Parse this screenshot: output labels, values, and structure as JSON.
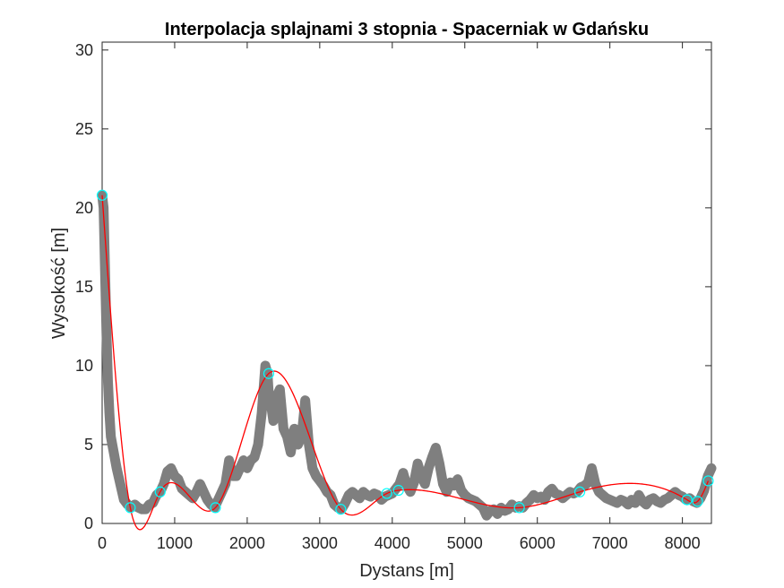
{
  "chart_data": {
    "type": "line",
    "title": "Interpolacja splajnami 3 stopnia - Spacerniak w Gdańsku",
    "xlabel": "Dystans [m]",
    "ylabel": "Wysokość [m]",
    "xlim": [
      0,
      8400
    ],
    "ylim": [
      0,
      30.5
    ],
    "xticks": [
      0,
      1000,
      2000,
      3000,
      4000,
      5000,
      6000,
      7000,
      8000
    ],
    "yticks": [
      0,
      5,
      10,
      15,
      20,
      25,
      30
    ],
    "grid": false,
    "colors": {
      "data": "#7f7f7f",
      "spline": "#ff0000",
      "nodes": "#00ffff",
      "axes": "#262626"
    },
    "series": [
      {
        "role": "elevation-profile",
        "x": [
          0,
          20,
          40,
          60,
          80,
          100,
          120,
          140,
          160,
          180,
          200,
          250,
          300,
          350,
          400,
          450,
          500,
          550,
          600,
          650,
          700,
          750,
          800,
          850,
          900,
          950,
          1000,
          1050,
          1100,
          1150,
          1200,
          1250,
          1300,
          1350,
          1400,
          1450,
          1500,
          1550,
          1600,
          1650,
          1700,
          1750,
          1800,
          1850,
          1900,
          1950,
          2000,
          2050,
          2100,
          2150,
          2200,
          2250,
          2280,
          2300,
          2330,
          2360,
          2400,
          2450,
          2500,
          2550,
          2600,
          2650,
          2700,
          2750,
          2800,
          2850,
          2900,
          2950,
          3000,
          3050,
          3100,
          3150,
          3200,
          3250,
          3300,
          3350,
          3400,
          3450,
          3500,
          3550,
          3600,
          3650,
          3700,
          3750,
          3800,
          3850,
          3900,
          3950,
          4000,
          4050,
          4100,
          4150,
          4200,
          4250,
          4300,
          4350,
          4400,
          4450,
          4500,
          4550,
          4600,
          4650,
          4700,
          4750,
          4800,
          4850,
          4900,
          4950,
          5000,
          5050,
          5100,
          5150,
          5200,
          5250,
          5300,
          5350,
          5400,
          5450,
          5500,
          5550,
          5600,
          5650,
          5700,
          5750,
          5800,
          5850,
          5900,
          5950,
          6000,
          6050,
          6100,
          6150,
          6200,
          6250,
          6300,
          6350,
          6400,
          6450,
          6500,
          6550,
          6600,
          6650,
          6700,
          6750,
          6800,
          6850,
          6900,
          6950,
          7000,
          7050,
          7100,
          7150,
          7200,
          7250,
          7300,
          7350,
          7400,
          7450,
          7500,
          7550,
          7600,
          7650,
          7700,
          7750,
          7800,
          7850,
          7900,
          7950,
          8000,
          8050,
          8100,
          8150,
          8200,
          8250,
          8300,
          8350,
          8400
        ],
        "y": [
          20.8,
          20,
          16,
          12,
          9,
          7,
          5.5,
          5,
          4.5,
          4,
          3.5,
          2.5,
          1.5,
          1.2,
          1.0,
          1.2,
          1.0,
          0.9,
          0.9,
          1.2,
          1.3,
          1.8,
          2.0,
          2.5,
          3.3,
          3.5,
          3.0,
          2.8,
          2.2,
          2.0,
          1.8,
          1.6,
          2.0,
          2.5,
          2.0,
          1.5,
          1.2,
          1.0,
          1.5,
          2.0,
          2.5,
          4.0,
          3.0,
          3.0,
          3.5,
          4.0,
          3.5,
          4.0,
          4.2,
          5.0,
          7.0,
          10.0,
          9.5,
          8.0,
          7.5,
          6.5,
          8.0,
          8.5,
          6.0,
          5.5,
          4.5,
          6.0,
          5.0,
          5.5,
          7.8,
          5.0,
          3.5,
          3.0,
          2.7,
          2.4,
          2.0,
          1.8,
          1.2,
          1.0,
          0.9,
          1.3,
          1.8,
          2.0,
          1.8,
          1.6,
          2.0,
          1.8,
          1.7,
          1.9,
          1.8,
          1.5,
          1.7,
          1.8,
          1.9,
          2.2,
          2.5,
          3.2,
          2.4,
          2.0,
          2.6,
          3.8,
          3.0,
          2.5,
          3.5,
          4.2,
          4.8,
          3.8,
          2.5,
          2.0,
          2.6,
          2.4,
          2.8,
          2.1,
          1.8,
          1.6,
          1.5,
          1.4,
          1.2,
          1.0,
          0.5,
          0.8,
          0.9,
          0.6,
          1.0,
          0.8,
          0.9,
          1.2,
          1.0,
          1.1,
          1.0,
          1.3,
          1.5,
          1.8,
          1.6,
          1.7,
          1.5,
          2.0,
          2.2,
          1.9,
          1.8,
          1.6,
          1.8,
          2.0,
          1.9,
          2.0,
          2.3,
          2.4,
          2.6,
          3.5,
          2.5,
          2.0,
          1.8,
          1.6,
          1.5,
          1.4,
          1.3,
          1.5,
          1.4,
          1.2,
          1.5,
          1.3,
          1.8,
          1.4,
          1.2,
          1.5,
          1.6,
          1.4,
          1.3,
          1.5,
          1.6,
          1.8,
          2.0,
          1.8,
          1.7,
          1.5,
          1.6,
          1.4,
          1.3,
          1.6,
          2.1,
          3.0,
          3.5
        ]
      },
      {
        "role": "cubic-spline",
        "x": [
          0,
          388,
          800,
          1562,
          2297,
          3290,
          3924,
          4085,
          5752,
          6585,
          8064,
          8209,
          8356
        ],
        "y": [
          20.8,
          1.0,
          2.0,
          1.0,
          9.5,
          0.9,
          1.9,
          2.1,
          1.0,
          2.0,
          1.5,
          1.4,
          2.7
        ]
      },
      {
        "role": "interpolation-nodes",
        "x": [
          0,
          388,
          800,
          1562,
          2297,
          3290,
          3924,
          4085,
          5752,
          6585,
          8064,
          8209,
          8356
        ],
        "y": [
          20.8,
          1.0,
          2.0,
          1.0,
          9.5,
          0.9,
          1.9,
          2.1,
          1.0,
          2.0,
          1.5,
          1.4,
          2.7
        ]
      }
    ]
  }
}
